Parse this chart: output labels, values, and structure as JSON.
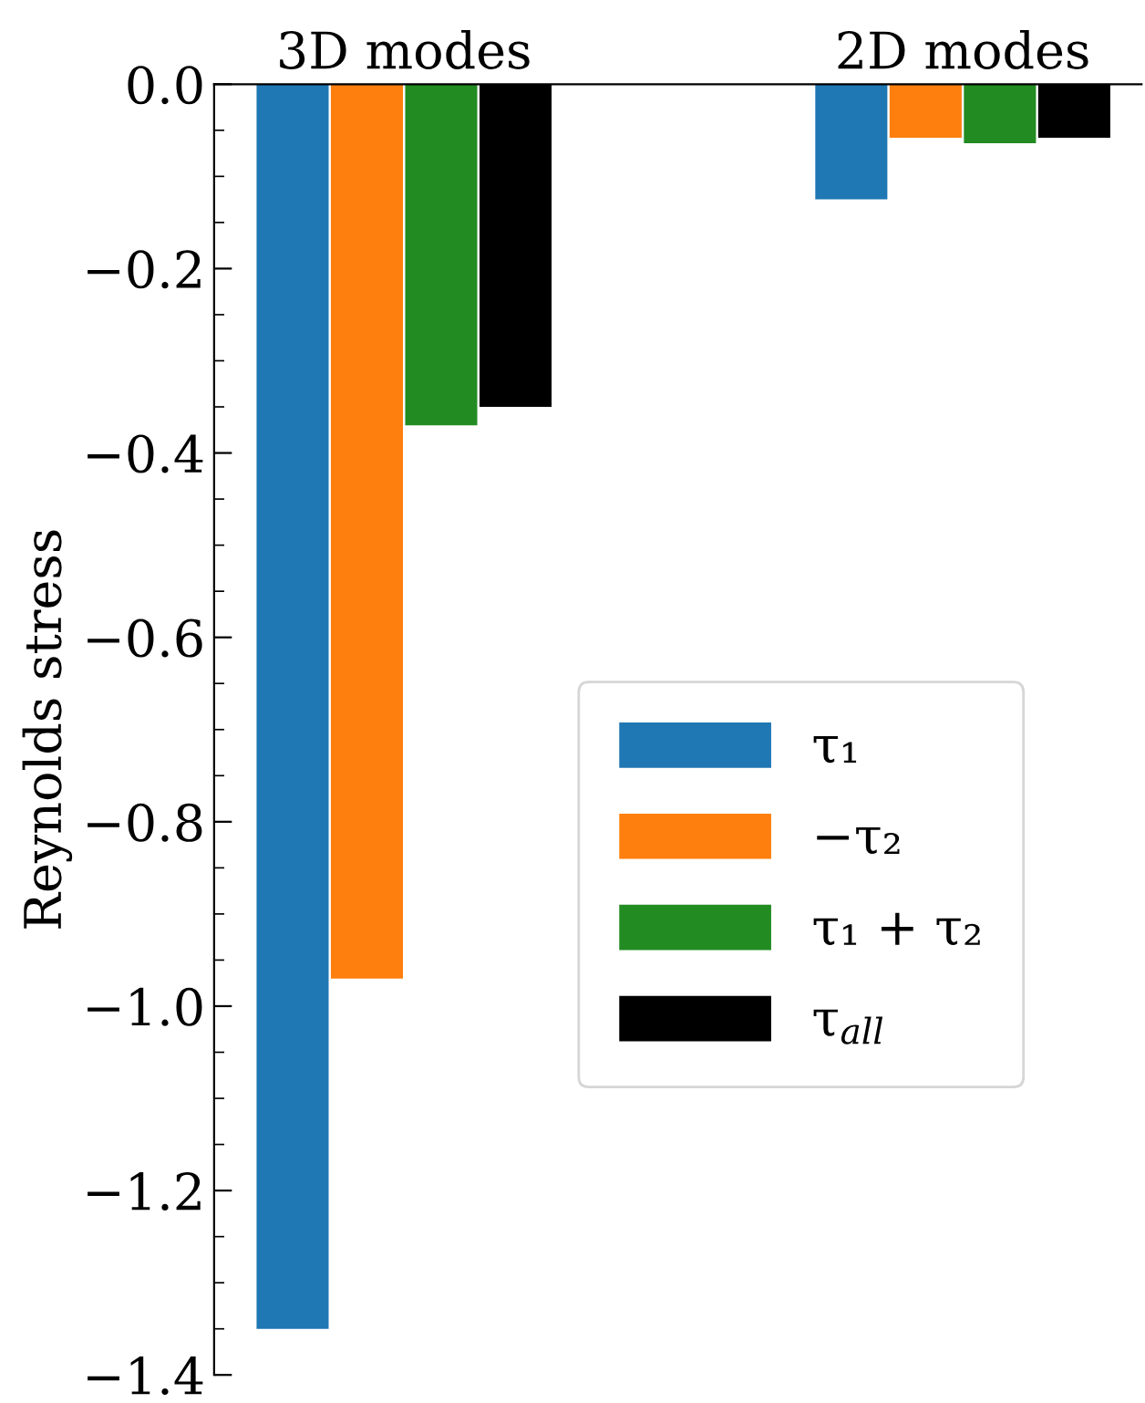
{
  "chart_data": {
    "type": "bar",
    "ylabel": "Reynolds stress",
    "categories": [
      "3D modes",
      "2D modes"
    ],
    "series": [
      {
        "name": "τ₁",
        "color": "#1f77b4",
        "values": [
          -1.35,
          -0.125
        ]
      },
      {
        "name": "−τ₂",
        "color": "#ff7f0e",
        "values": [
          -0.97,
          -0.058
        ]
      },
      {
        "name": "τ₁ + τ₂",
        "color": "#228b22",
        "values": [
          -0.37,
          -0.064
        ]
      },
      {
        "name": "τ$_{all}$",
        "color": "#000000",
        "values": [
          -0.35,
          -0.058
        ]
      }
    ],
    "ylim": [
      -1.4,
      0.0
    ],
    "yticks": [
      {
        "value": -1.4,
        "label": "−1.4"
      },
      {
        "value": -1.2,
        "label": "−1.2"
      },
      {
        "value": -1.0,
        "label": "−1.0"
      },
      {
        "value": -0.8,
        "label": "−0.8"
      },
      {
        "value": -0.6,
        "label": "−0.6"
      },
      {
        "value": -0.4,
        "label": "−0.4"
      },
      {
        "value": -0.2,
        "label": "−0.2"
      },
      {
        "value": 0.0,
        "label": "0.0"
      }
    ],
    "grid": false,
    "legend": "center right"
  }
}
